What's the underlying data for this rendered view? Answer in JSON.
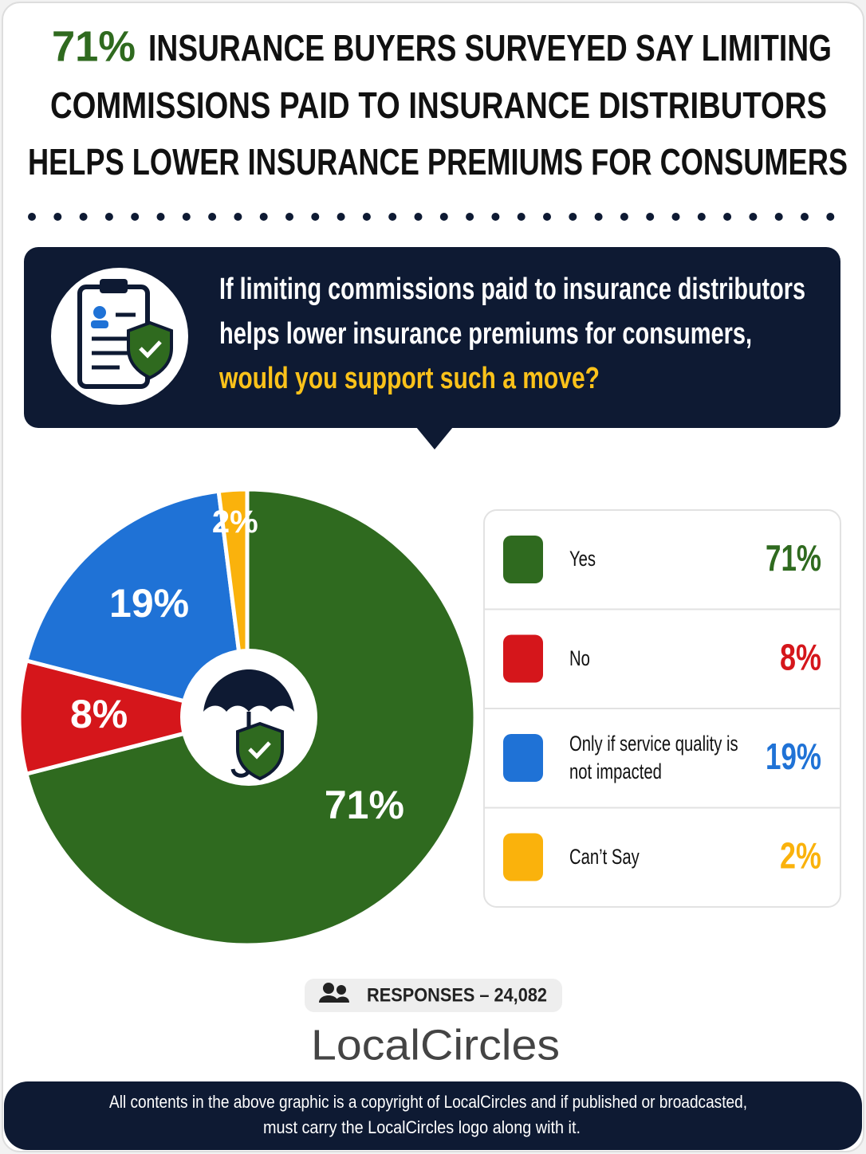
{
  "header": {
    "title_highlight": "71%",
    "title_lines": [
      "INSURANCE BUYERS SURVEYED SAY LIMITING",
      "COMMISSIONS PAID TO INSURANCE DISTRIBUTORS",
      "HELPS LOWER INSURANCE PREMIUMS FOR CONSUMERS"
    ]
  },
  "question": {
    "lines": [
      "If limiting commissions paid to insurance distributors",
      "helps lower insurance premiums for consumers,"
    ],
    "highlight": "would you support such a move?"
  },
  "chart_data": {
    "type": "pie",
    "categories": [
      "Yes",
      "No",
      "Only if service quality is not impacted",
      "Can’t Say"
    ],
    "values": [
      71,
      8,
      19,
      2
    ],
    "value_labels": [
      "71%",
      "8%",
      "19%",
      "2%"
    ],
    "colors": [
      "#2f6a1f",
      "#d5161b",
      "#1f72d6",
      "#fab20c"
    ]
  },
  "responses": "RESPONSES – 24,082",
  "logo": "LocalCircles",
  "footer": [
    "All contents in the above graphic is a copyright of LocalCircles and if published or broadcasted,",
    "must carry the LocalCircles logo along with it."
  ]
}
